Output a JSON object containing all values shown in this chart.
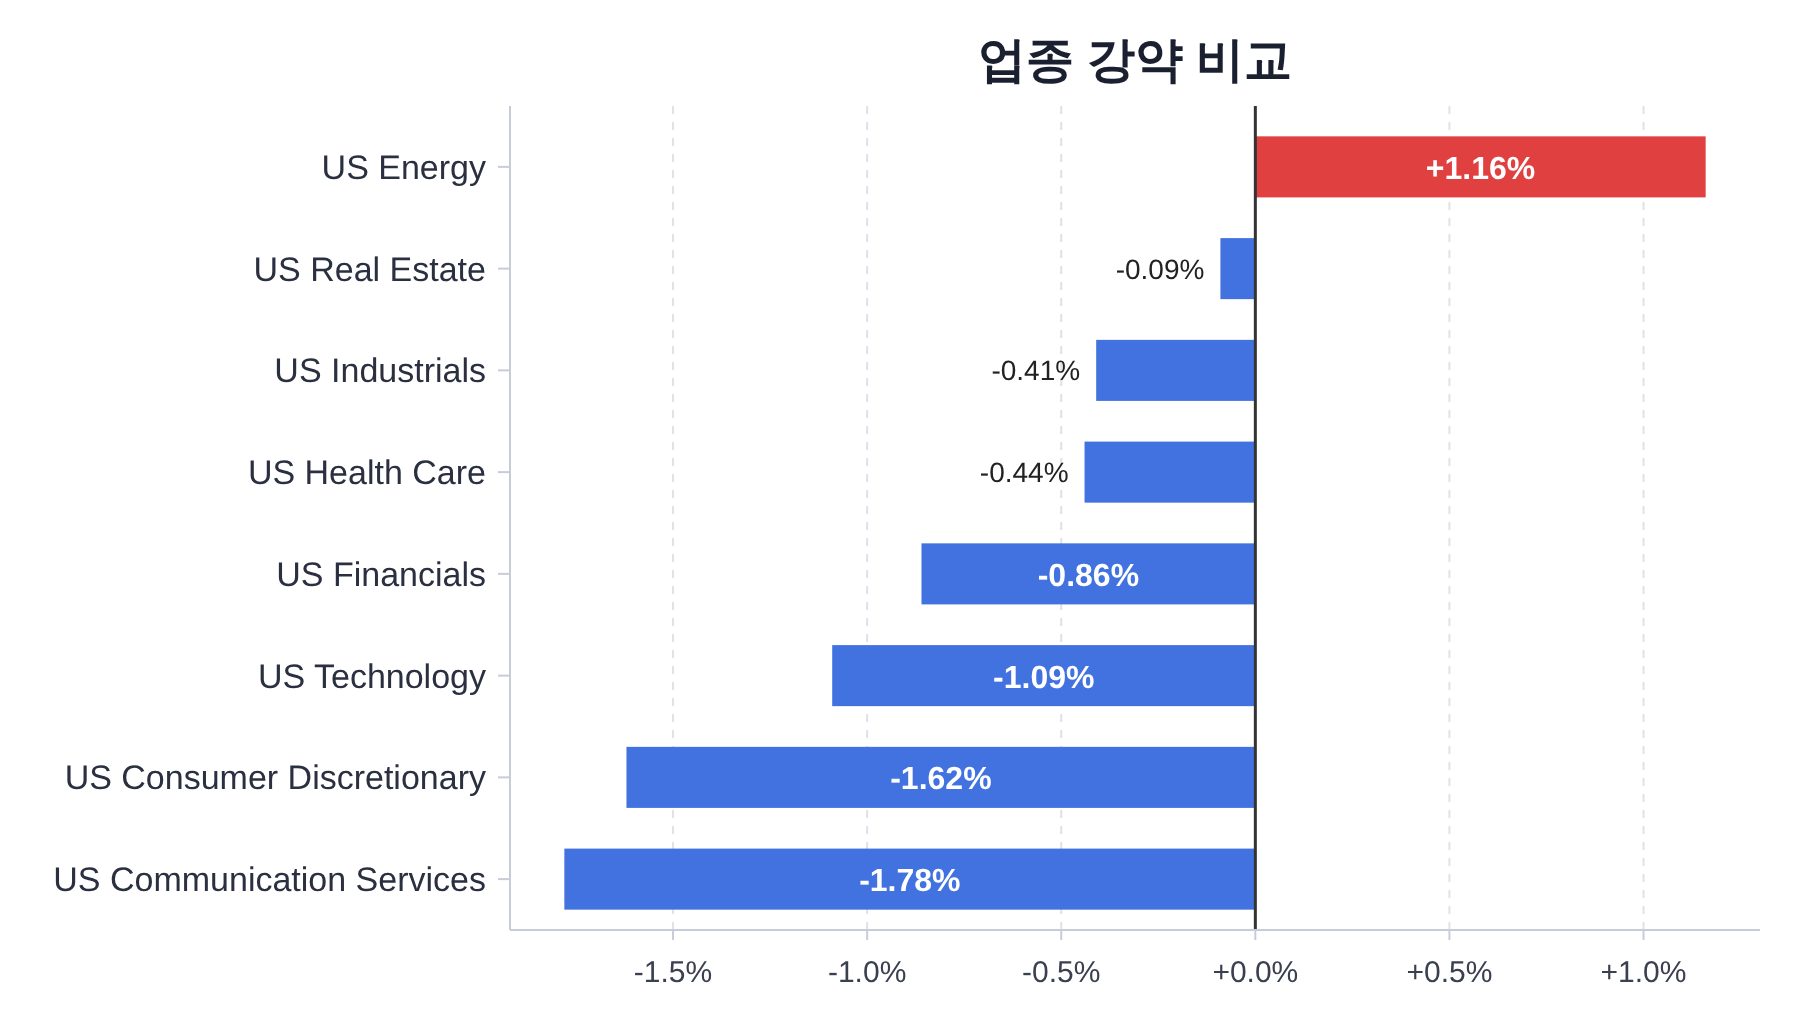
{
  "chart_data": {
    "type": "bar",
    "orientation": "horizontal",
    "title": "업종 강약 비교",
    "categories": [
      "US Energy",
      "US Real Estate",
      "US Industrials",
      "US Health Care",
      "US Financials",
      "US Technology",
      "US Consumer Discretionary",
      "US Communication Services"
    ],
    "values": [
      1.16,
      -0.09,
      -0.41,
      -0.44,
      -0.86,
      -1.09,
      -1.62,
      -1.78
    ],
    "colors": [
      "#e04040",
      "#4272e0",
      "#4272e0",
      "#4272e0",
      "#4272e0",
      "#4272e0",
      "#4272e0",
      "#4272e0"
    ],
    "value_labels": [
      "+1.16%",
      "-0.09%",
      "-0.41%",
      "-0.44%",
      "-0.86%",
      "-1.09%",
      "-1.62%",
      "-1.78%"
    ],
    "xlim": [
      -1.92,
      1.3
    ],
    "xticks": [
      {
        "value": -1.5,
        "label": "-1.5%"
      },
      {
        "value": -1.0,
        "label": "-1.0%"
      },
      {
        "value": -0.5,
        "label": "-0.5%"
      },
      {
        "value": 0,
        "label": "+0.0%"
      },
      {
        "value": 0.5,
        "label": "+0.5%"
      },
      {
        "value": 1.0,
        "label": "+1.0%"
      }
    ],
    "grid": "x",
    "ref_lines": [
      {
        "axis": "x",
        "value": 0,
        "color": "#333333"
      }
    ]
  }
}
